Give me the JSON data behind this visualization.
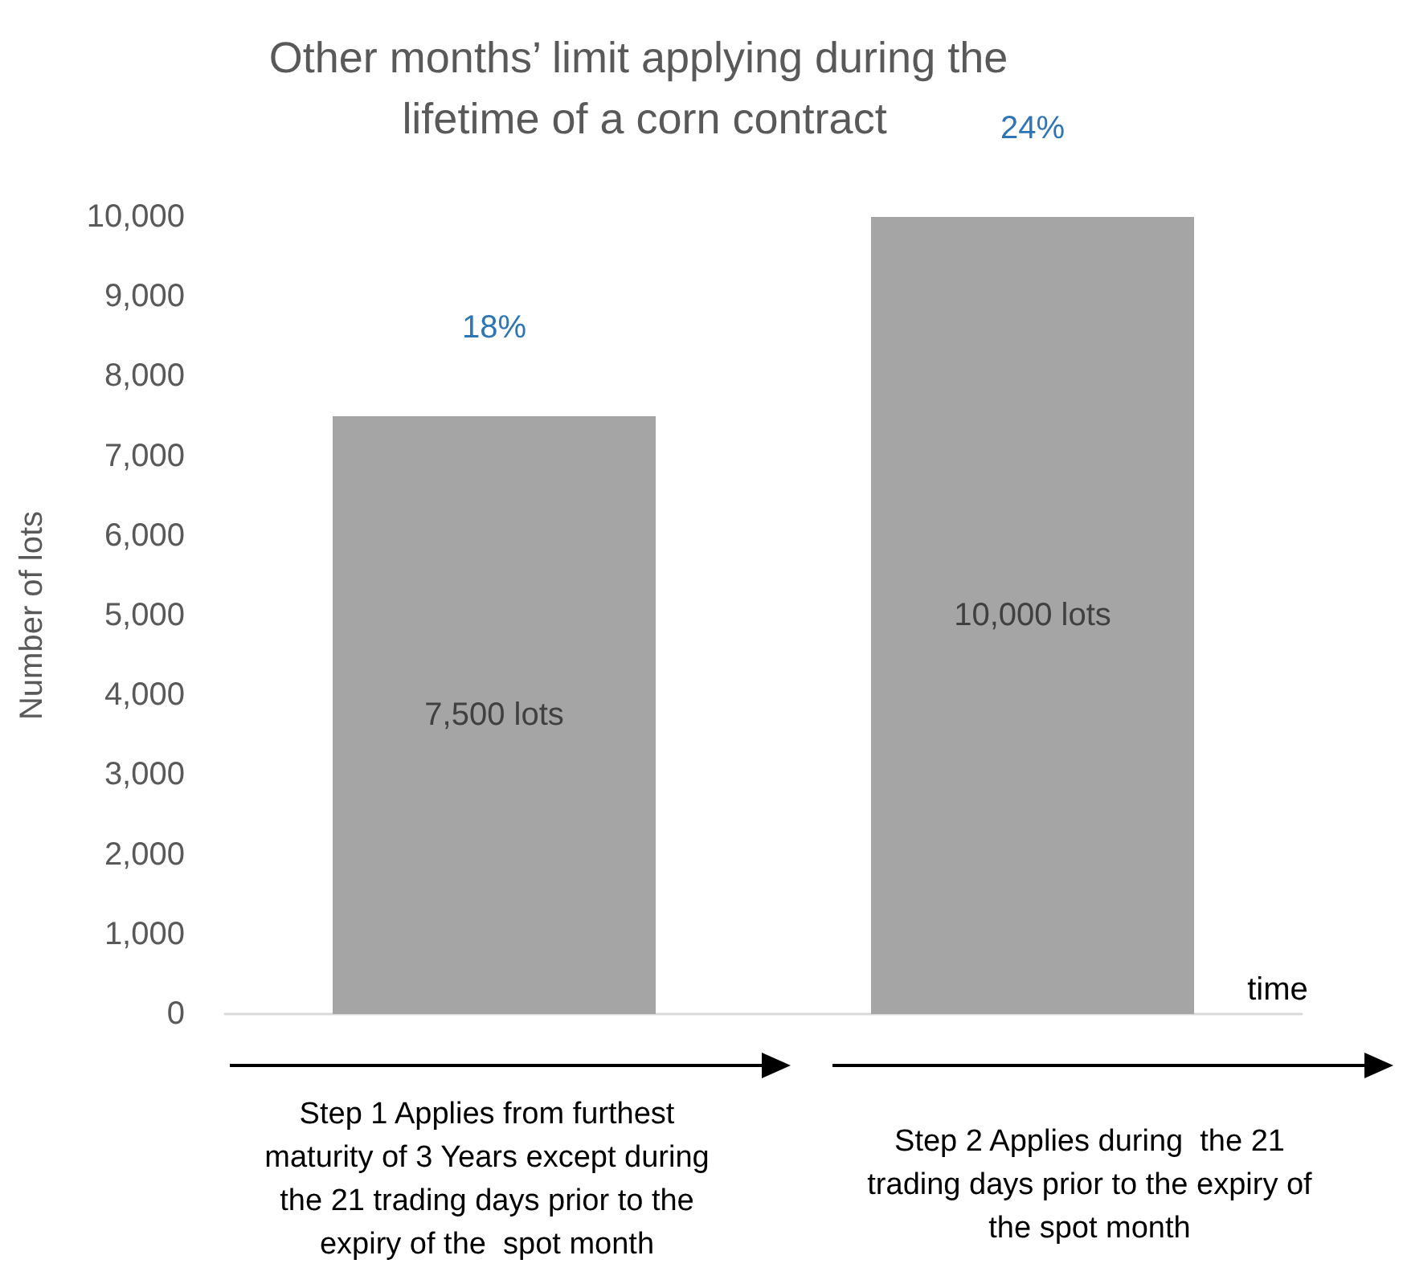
{
  "chart_data": {
    "type": "bar",
    "title": "Other months’ limit applying during the lifetime of a corn contract",
    "ylabel": "Number of lots",
    "categories": [
      null,
      null
    ],
    "values": [
      7500,
      10000
    ],
    "color": "#a5a5a5",
    "value_labels": [
      "7,500 lots",
      "10,000 lots"
    ],
    "ylim": [
      0,
      10000
    ],
    "yticks": [
      0,
      {
        "value": 1000,
        "label": "1,000"
      },
      {
        "value": 2000,
        "label": "2,000"
      },
      {
        "value": 3000,
        "label": "3,000"
      },
      {
        "value": 4000,
        "label": "4,000"
      },
      {
        "value": 5000,
        "label": "5,000"
      },
      {
        "value": 6000,
        "label": "6,000"
      },
      {
        "value": 7000,
        "label": "7,000"
      },
      {
        "value": 8000,
        "label": "8,000"
      },
      {
        "value": 9000,
        "label": "9,000"
      },
      {
        "value": 10000,
        "label": "10,000"
      }
    ],
    "grid": false,
    "annotations": [
      "18%",
      "24%",
      "time",
      "Step 1 Applies from furthest maturity of 3 Years except during the 21 trading days prior to the expiry of the  spot month",
      "Step 2 Applies during  the 21 trading days prior to the expiry of the spot month"
    ]
  }
}
